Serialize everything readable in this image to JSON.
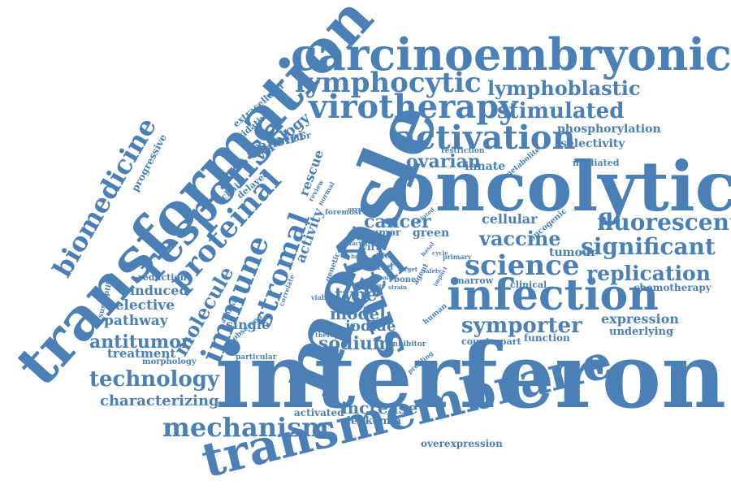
{
  "colors": {
    "word": "#4a80b5",
    "background": "#ffffff"
  },
  "words": {
    "interferon": "interferon",
    "measle": "measle",
    "oncolytic": "oncolytic",
    "transformation": "transformation",
    "transmembrane": "transmembrane",
    "carcinoembryonic": "carcinoembryonic",
    "virus": "virus",
    "infection": "infection",
    "response": "response",
    "virotherapy": "virotherapy",
    "activation": "activation",
    "lymphocytic": "lymphocytic",
    "proteinal": "proteinal",
    "immune": "immune",
    "stromal": "stromal",
    "biomedicine": "biomedicine",
    "cell": "cell",
    "science": "science",
    "fluorescent": "fluorescent",
    "significant": "significant",
    "mechanism": "mechanism",
    "technology": "technology",
    "lymphoblastic": "lymphoblastic",
    "stimulated": "stimulated",
    "replication": "replication",
    "symporter": "symporter",
    "vaccine": "vaccine",
    "ovarian": "ovarian",
    "molecule": "molecule",
    "cancer": "cancer",
    "antitumor": "antitumor",
    "characterizing": "characterizing",
    "increase": "increase",
    "sodium": "sodium",
    "iodide": "iodide",
    "type": "type",
    "model": "model",
    "induced": "induced",
    "selective": "selective",
    "pathway": "pathway",
    "treatment": "treatment",
    "single": "single",
    "phosphorylation": "phosphorylation",
    "selectivity": "selectivity",
    "expression": "expression",
    "underlying": "underlying",
    "transfer": "transfer",
    "virology": "virology",
    "activity": "activity",
    "rescue": "rescue",
    "cellular": "cellular",
    "tumour": "tumour",
    "chemotherapy": "chemotherapy",
    "leukemia": "leukemia",
    "activated": "activated",
    "overexpression": "overexpression",
    "progressive": "progressive",
    "oxidative": "oxidative",
    "extracellular": "extracellular",
    "receptor": "receptor",
    "delayed": "delayed",
    "chain": "chain",
    "innate": "innate",
    "restriction": "restriction",
    "mediated": "mediated",
    "metabolite": "metabolite",
    "green": "green",
    "viral": "viral",
    "reduction": "reduction",
    "morphology": "morphology",
    "marrow": "marrow",
    "clinical": "clinical",
    "counterpart": "counterpart",
    "function": "function",
    "susceptible": "susceptible",
    "foremost": "foremost",
    "oncogenic": "oncogenic",
    "tumor": "tumor",
    "level": "level",
    "trial": "trial",
    "bone": "bone",
    "inhibitor": "inhibitor",
    "human": "human",
    "particular": "particular",
    "observed": "observed",
    "therapy": "therapy",
    "viability": "viability",
    "primary": "primary",
    "profiling": "profiling",
    "agent": "agent",
    "genetic": "genetic",
    "life": "life",
    "analysis": "analysis",
    "correlate": "correlate",
    "review": "review",
    "normal": "normal",
    "oxygen": "oxygen",
    "related": "related",
    "factor": "factor",
    "host": "host",
    "safety": "safety",
    "basal": "basal",
    "cycle": "cycle",
    "strain": "strain",
    "impact": "impact",
    "ncur": "ncur",
    "target": "target",
    "small": "small",
    "stage": "stage"
  }
}
